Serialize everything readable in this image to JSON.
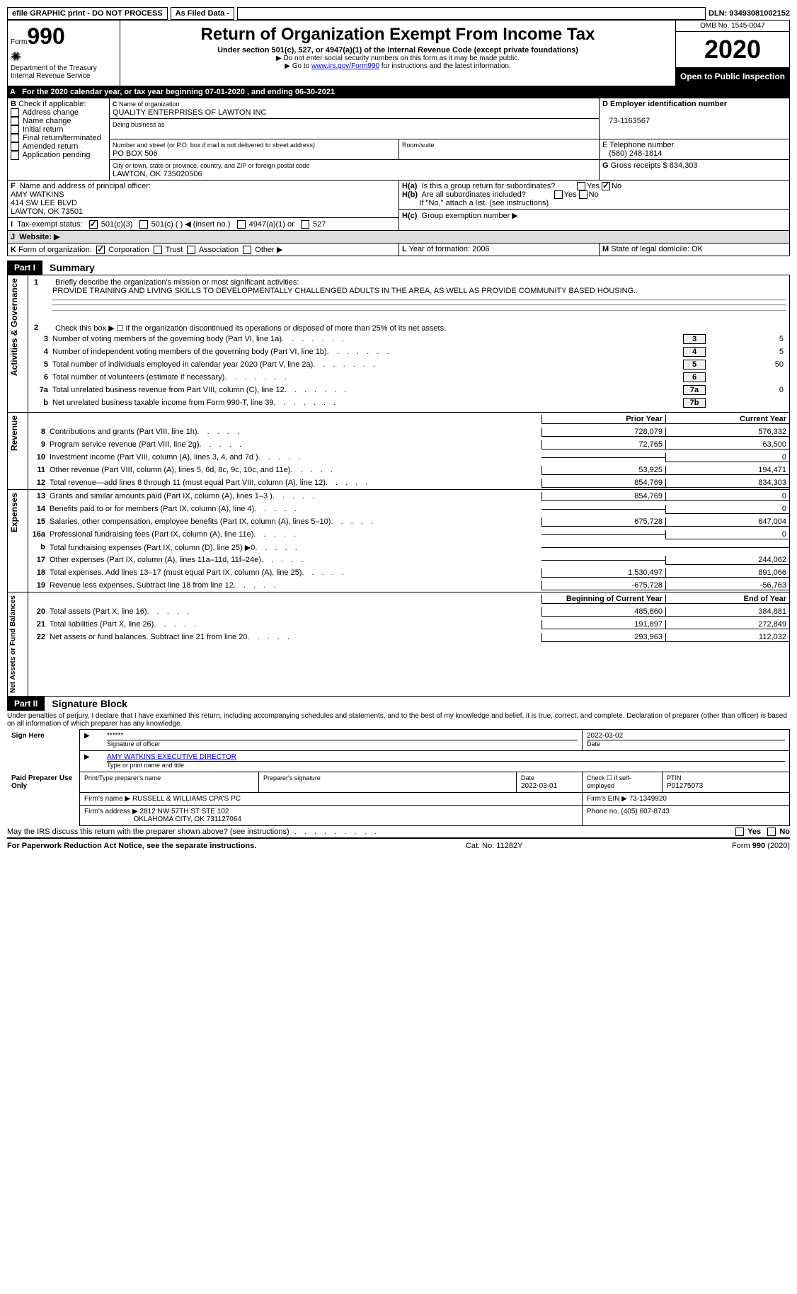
{
  "topbar": {
    "efile": "efile GRAPHIC print - DO NOT PROCESS",
    "asfiled": "As Filed Data -",
    "dln_label": "DLN:",
    "dln": "93493081002152"
  },
  "header": {
    "form_label": "Form",
    "form_num": "990",
    "dept": "Department of the Treasury",
    "irs": "Internal Revenue Service",
    "title": "Return of Organization Exempt From Income Tax",
    "subtitle": "Under section 501(c), 527, or 4947(a)(1) of the Internal Revenue Code (except private foundations)",
    "line2": "▶ Do not enter social security numbers on this form as it may be made public.",
    "line3_pre": "▶ Go to ",
    "line3_link": "www.irs.gov/Form990",
    "line3_post": " for instructions and the latest information.",
    "omb": "OMB No. 1545-0047",
    "year": "2020",
    "inspect": "Open to Public Inspection"
  },
  "row_a": {
    "label": "A",
    "text": "For the 2020 calendar year, or tax year beginning 07-01-2020   , and ending 06-30-2021"
  },
  "section_b": {
    "label": "B",
    "check_label": "Check if applicable:",
    "items": [
      "Address change",
      "Name change",
      "Initial return",
      "Final return/terminated",
      "Amended return",
      "Application pending"
    ]
  },
  "section_c": {
    "label": "C",
    "name_label": "Name of organization",
    "name": "QUALITY ENTERPRISES OF LAWTON INC",
    "dba_label": "Doing business as",
    "dba": "",
    "street_label": "Number and street (or P.O. box if mail is not delivered to street address)",
    "room_label": "Room/suite",
    "street": "PO BOX 506",
    "city_label": "City or town, state or province, country, and ZIP or foreign postal code",
    "city": "LAWTON, OK  735020506"
  },
  "section_d": {
    "label": "D Employer identification number",
    "ein": "73-1163567"
  },
  "section_e": {
    "label": "E Telephone number",
    "phone": "(580) 248-1814"
  },
  "section_g": {
    "label": "G",
    "text": "Gross receipts $",
    "amount": "834,303"
  },
  "section_f": {
    "label": "F",
    "text": "Name and address of principal officer:",
    "name": "AMY WATKINS",
    "addr1": "414 SW LEE BLVD",
    "addr2": "LAWTON, OK  73501"
  },
  "section_h": {
    "ha": "H(a)",
    "ha_text": "Is this a group return for subordinates?",
    "hb": "H(b)",
    "hb_text": "Are all subordinates included?",
    "hb_note": "If \"No,\" attach a list. (see instructions)",
    "hc": "H(c)",
    "hc_text": "Group exemption number ▶",
    "yes": "Yes",
    "no": "No"
  },
  "section_i": {
    "label": "I",
    "text": "Tax-exempt status:",
    "opt1": "501(c)(3)",
    "opt2": "501(c) (   ) ◀ (insert no.)",
    "opt3": "4947(a)(1) or",
    "opt4": "527"
  },
  "section_j": {
    "label": "J",
    "text": "Website: ▶"
  },
  "section_k": {
    "label": "K",
    "text": "Form of organization:",
    "opts": [
      "Corporation",
      "Trust",
      "Association",
      "Other ▶"
    ]
  },
  "section_l": {
    "label": "L",
    "text": "Year of formation:",
    "val": "2006"
  },
  "section_m": {
    "label": "M",
    "text": "State of legal domicile:",
    "val": "OK"
  },
  "part1": {
    "label": "Part I",
    "title": "Summary",
    "sections": {
      "governance": "Activities & Governance",
      "revenue": "Revenue",
      "expenses": "Expenses",
      "netassets": "Net Assets or Fund Balances"
    },
    "line1_label": "1",
    "line1_text": "Briefly describe the organization's mission or most significant activities:",
    "line1_val": "PROVIDE TRAINING AND LIVING SKILLS TO DEVELOPMENTALLY CHALLENGED ADULTS IN THE AREA, AS WELL AS PROVIDE COMMUNITY BASED HOUSING..",
    "line2_label": "2",
    "line2_text": "Check this box ▶ ☐ if the organization discontinued its operations or disposed of more than 25% of its net assets.",
    "lines_gov": [
      {
        "n": "3",
        "desc": "Number of voting members of the governing body (Part VI, line 1a)",
        "box": "3",
        "val": "5"
      },
      {
        "n": "4",
        "desc": "Number of independent voting members of the governing body (Part VI, line 1b)",
        "box": "4",
        "val": "5"
      },
      {
        "n": "5",
        "desc": "Total number of individuals employed in calendar year 2020 (Part V, line 2a)",
        "box": "5",
        "val": "50"
      },
      {
        "n": "6",
        "desc": "Total number of volunteers (estimate if necessary)",
        "box": "6",
        "val": ""
      },
      {
        "n": "7a",
        "desc": "Total unrelated business revenue from Part VIII, column (C), line 12",
        "box": "7a",
        "val": "0"
      },
      {
        "n": "b",
        "desc": "Net unrelated business taxable income from Form 990-T, line 39",
        "box": "7b",
        "val": ""
      }
    ],
    "col_headers": {
      "prior": "Prior Year",
      "current": "Current Year"
    },
    "revenue_lines": [
      {
        "n": "8",
        "desc": "Contributions and grants (Part VIII, line 1h)",
        "prior": "728,079",
        "current": "576,332"
      },
      {
        "n": "9",
        "desc": "Program service revenue (Part VIII, line 2g)",
        "prior": "72,765",
        "current": "63,500"
      },
      {
        "n": "10",
        "desc": "Investment income (Part VIII, column (A), lines 3, 4, and 7d )",
        "prior": "",
        "current": "0"
      },
      {
        "n": "11",
        "desc": "Other revenue (Part VIII, column (A), lines 5, 6d, 8c, 9c, 10c, and 11e)",
        "prior": "53,925",
        "current": "194,471"
      },
      {
        "n": "12",
        "desc": "Total revenue—add lines 8 through 11 (must equal Part VIII, column (A), line 12)",
        "prior": "854,769",
        "current": "834,303"
      }
    ],
    "expense_lines": [
      {
        "n": "13",
        "desc": "Grants and similar amounts paid (Part IX, column (A), lines 1–3 )",
        "prior": "854,769",
        "current": "0"
      },
      {
        "n": "14",
        "desc": "Benefits paid to or for members (Part IX, column (A), line 4)",
        "prior": "",
        "current": "0"
      },
      {
        "n": "15",
        "desc": "Salaries, other compensation, employee benefits (Part IX, column (A), lines 5–10)",
        "prior": "675,728",
        "current": "647,004"
      },
      {
        "n": "16a",
        "desc": "Professional fundraising fees (Part IX, column (A), line 11e)",
        "prior": "",
        "current": "0"
      },
      {
        "n": "b",
        "desc": "Total fundraising expenses (Part IX, column (D), line 25) ▶0",
        "prior": "",
        "current": "",
        "shaded": true
      },
      {
        "n": "17",
        "desc": "Other expenses (Part IX, column (A), lines 11a–11d, 11f–24e)",
        "prior": "",
        "current": "244,062"
      },
      {
        "n": "18",
        "desc": "Total expenses. Add lines 13–17 (must equal Part IX, column (A), line 25)",
        "prior": "1,530,497",
        "current": "891,066"
      },
      {
        "n": "19",
        "desc": "Revenue less expenses. Subtract line 18 from line 12",
        "prior": "-675,728",
        "current": "-56,763"
      }
    ],
    "net_headers": {
      "begin": "Beginning of Current Year",
      "end": "End of Year"
    },
    "net_lines": [
      {
        "n": "20",
        "desc": "Total assets (Part X, line 16)",
        "prior": "485,860",
        "current": "384,881"
      },
      {
        "n": "21",
        "desc": "Total liabilities (Part X, line 26)",
        "prior": "191,897",
        "current": "272,849"
      },
      {
        "n": "22",
        "desc": "Net assets or fund balances. Subtract line 21 from line 20",
        "prior": "293,963",
        "current": "112,032"
      }
    ]
  },
  "part2": {
    "label": "Part II",
    "title": "Signature Block",
    "declaration": "Under penalties of perjury, I declare that I have examined this return, including accompanying schedules and statements, and to the best of my knowledge and belief, it is true, correct, and complete. Declaration of preparer (other than officer) is based on all information of which preparer has any knowledge."
  },
  "sign": {
    "label": "Sign Here",
    "stars": "******",
    "sig_label": "Signature of officer",
    "date": "2022-03-02",
    "date_label": "Date",
    "name": "AMY WATKINS EXECUTIVE DIRECTOR",
    "name_label": "Type or print name and title"
  },
  "preparer": {
    "label": "Paid Preparer Use Only",
    "col1": "Print/Type preparer's name",
    "col2": "Preparer's signature",
    "col3": "Date",
    "date": "2022-03-01",
    "check_label": "Check ☐ if self-employed",
    "ptin_label": "PTIN",
    "ptin": "P01275073",
    "firm_name_label": "Firm's name    ▶",
    "firm_name": "RUSSELL & WILLIAMS CPA'S PC",
    "firm_ein_label": "Firm's EIN ▶",
    "firm_ein": "73-1349920",
    "firm_addr_label": "Firm's address ▶",
    "firm_addr1": "2812 NW 57TH ST STE 102",
    "firm_addr2": "OKLAHOMA CITY, OK  731127064",
    "phone_label": "Phone no.",
    "phone": "(405) 607-8743"
  },
  "bottom": {
    "discuss": "May the IRS discuss this return with the preparer shown above? (see instructions)",
    "yes": "Yes",
    "no": "No",
    "paperwork": "For Paperwork Reduction Act Notice, see the separate instructions.",
    "cat": "Cat. No. 11282Y",
    "form": "Form 990 (2020)"
  }
}
